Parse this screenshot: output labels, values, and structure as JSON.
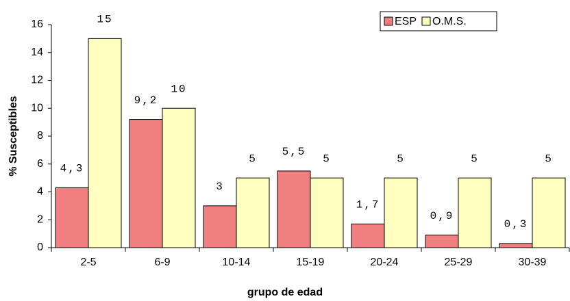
{
  "chart_data": {
    "type": "bar",
    "x_label": "grupo de edad",
    "y_label": "% Susceptibles",
    "categories": [
      "2-5",
      "6-9",
      "10-14",
      "15-19",
      "20-24",
      "25-29",
      "30-39"
    ],
    "series": [
      {
        "name": "ESP",
        "color": "#f08080",
        "values": [
          4.3,
          9.2,
          3,
          5.5,
          1.7,
          0.9,
          0.3
        ],
        "value_labels": [
          "4,3",
          "9,2",
          "3",
          "5,5",
          "1,7",
          "0,9",
          "0,3"
        ]
      },
      {
        "name": "O.M.S.",
        "color": "#ffffc0",
        "values": [
          15,
          10,
          5,
          5,
          5,
          5,
          5
        ]
      }
    ],
    "ylim": [
      0,
      16
    ],
    "yticks": [
      0,
      2,
      4,
      6,
      8,
      10,
      12,
      14,
      16
    ],
    "grid": false,
    "legend": "top-right"
  }
}
